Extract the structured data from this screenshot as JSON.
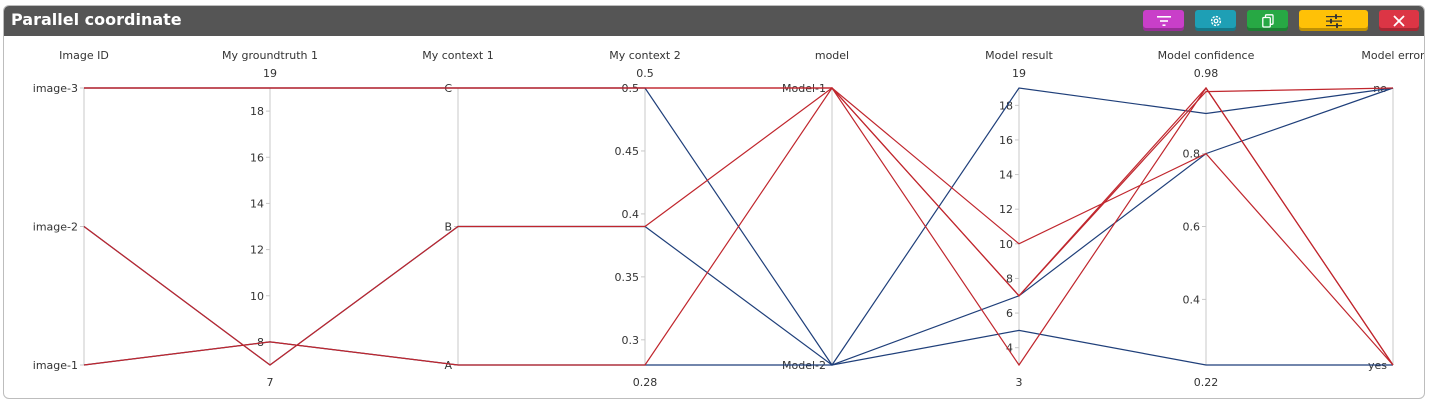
{
  "window": {
    "title": "Parallel coordinate"
  },
  "toolbar": {
    "buttons": [
      {
        "name": "filter-button",
        "icon": "filter-icon",
        "color": "#c93fc9"
      },
      {
        "name": "settings-button",
        "icon": "gear-icon",
        "color": "#1e9fb5"
      },
      {
        "name": "copy-button",
        "icon": "copy-icon",
        "color": "#27a844"
      },
      {
        "name": "adjust-button",
        "icon": "sliders-icon",
        "color": "#ffc107"
      },
      {
        "name": "close-button",
        "icon": "close-icon",
        "color": "#dc3545"
      }
    ]
  },
  "chart_data": {
    "type": "parallel-coordinates",
    "axes": [
      {
        "key": "image_id",
        "label": "Image ID",
        "kind": "categorical",
        "categories": [
          "image-1",
          "image-2",
          "image-3"
        ]
      },
      {
        "key": "gt1",
        "label": "My groundtruth 1",
        "kind": "numeric",
        "range": [
          7,
          19
        ],
        "ticks": [
          8,
          10,
          12,
          14,
          16,
          18
        ],
        "min_label": "7",
        "max_label": "19"
      },
      {
        "key": "ctx1",
        "label": "My context 1",
        "kind": "categorical",
        "categories": [
          "A",
          "B",
          "C"
        ]
      },
      {
        "key": "ctx2",
        "label": "My context 2",
        "kind": "numeric",
        "range": [
          0.28,
          0.5
        ],
        "ticks": [
          "0.3",
          "0.35",
          "0.4",
          "0.45",
          "0.5"
        ],
        "min_label": "0.28",
        "max_label": "0.5"
      },
      {
        "key": "model",
        "label": "model",
        "kind": "categorical",
        "categories": [
          "Model-2",
          "Model-1"
        ]
      },
      {
        "key": "result",
        "label": "Model result",
        "kind": "numeric",
        "range": [
          3,
          19
        ],
        "ticks": [
          4,
          6,
          8,
          10,
          12,
          14,
          16,
          18
        ],
        "min_label": "3",
        "max_label": "19"
      },
      {
        "key": "conf",
        "label": "Model confidence",
        "kind": "numeric",
        "range": [
          0.22,
          0.98
        ],
        "ticks": [
          "0.4",
          "0.6",
          "0.8"
        ],
        "min_label": "0.22",
        "max_label": "0.98"
      },
      {
        "key": "error",
        "label": "Model error",
        "kind": "categorical",
        "categories": [
          "yes",
          "no"
        ]
      }
    ],
    "colors": {
      "Model-1": "#c0262d",
      "Model-2": "#1f3f7a"
    },
    "rows": [
      {
        "image_id": "image-3",
        "gt1": 19,
        "ctx1": "C",
        "ctx2": 0.5,
        "model": "Model-1",
        "result": 10,
        "conf": 0.8,
        "error": "yes"
      },
      {
        "image_id": "image-3",
        "gt1": 19,
        "ctx1": "C",
        "ctx2": 0.5,
        "model": "Model-1",
        "result": 7,
        "conf": 0.97,
        "error": "no"
      },
      {
        "image_id": "image-3",
        "gt1": 19,
        "ctx1": "C",
        "ctx2": 0.5,
        "model": "Model-2",
        "result": 19,
        "conf": 0.91,
        "error": "no"
      },
      {
        "image_id": "image-2",
        "gt1": 7,
        "ctx1": "B",
        "ctx2": 0.39,
        "model": "Model-1",
        "result": 3,
        "conf": 0.98,
        "error": "yes"
      },
      {
        "image_id": "image-2",
        "gt1": 7,
        "ctx1": "B",
        "ctx2": 0.39,
        "model": "Model-2",
        "result": 7,
        "conf": 0.8,
        "error": "no"
      },
      {
        "image_id": "image-1",
        "gt1": 8,
        "ctx1": "A",
        "ctx2": 0.28,
        "model": "Model-1",
        "result": 7,
        "conf": 0.98,
        "error": "yes"
      },
      {
        "image_id": "image-1",
        "gt1": 8,
        "ctx1": "A",
        "ctx2": 0.28,
        "model": "Model-2",
        "result": 5,
        "conf": 0.22,
        "error": "yes"
      }
    ]
  }
}
